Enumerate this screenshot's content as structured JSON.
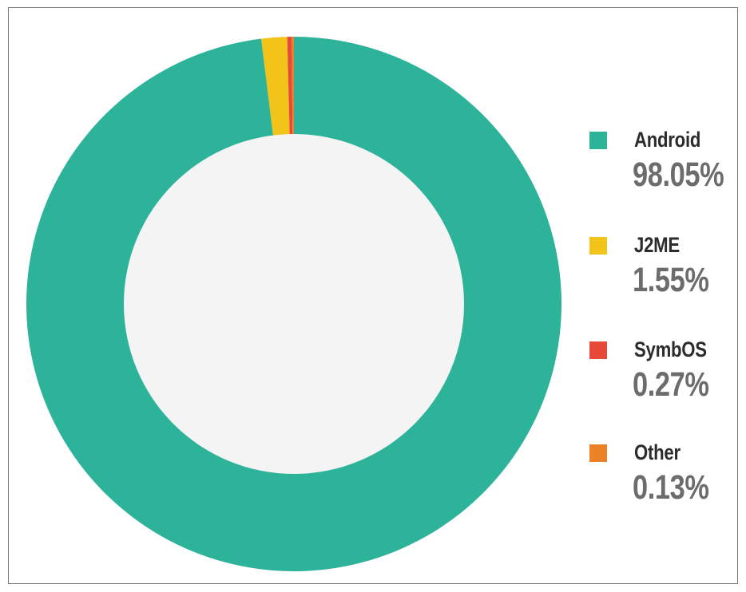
{
  "chart_data": {
    "type": "pie",
    "style": "donut",
    "title": "",
    "legend_position": "right",
    "slices": [
      {
        "label": "Android",
        "value": 98.05,
        "value_label": "98.05%",
        "color": "#2db399"
      },
      {
        "label": "J2ME",
        "value": 1.55,
        "value_label": "1.55%",
        "color": "#f2c318"
      },
      {
        "label": "SymbOS",
        "value": 0.27,
        "value_label": "0.27%",
        "color": "#e84a3a"
      },
      {
        "label": "Other",
        "value": 0.13,
        "value_label": "0.13%",
        "color": "#ec8226"
      }
    ],
    "center_color": "#f4f4f4"
  }
}
